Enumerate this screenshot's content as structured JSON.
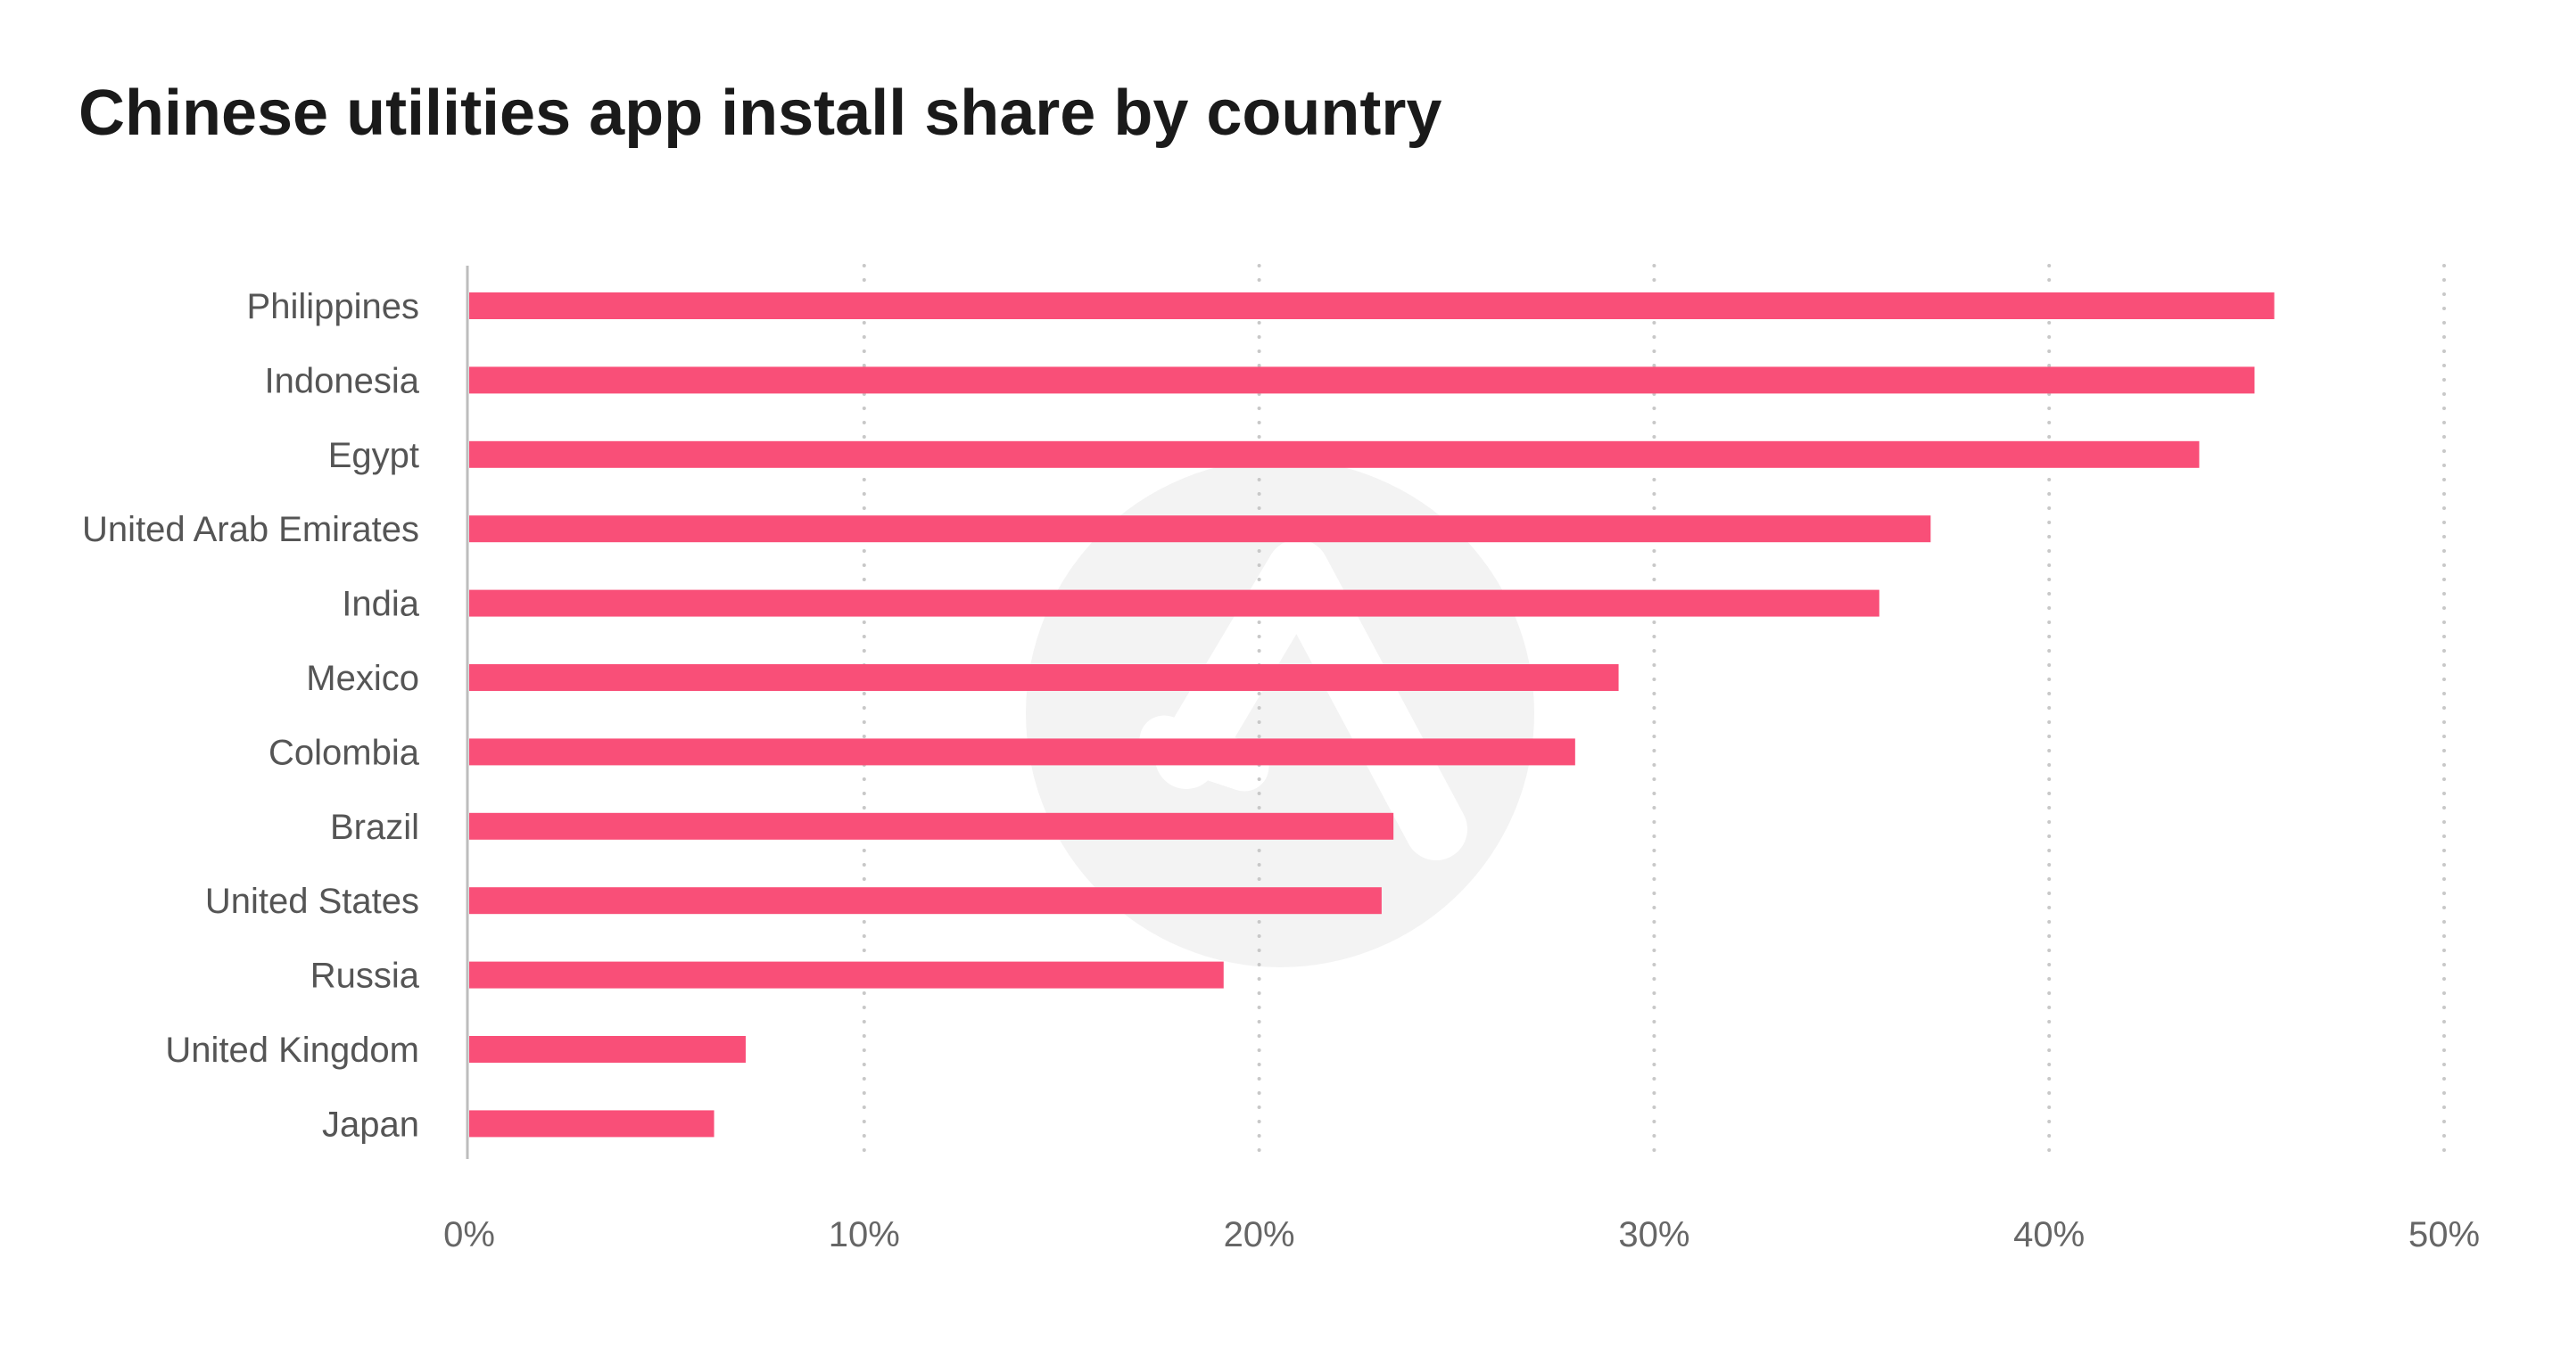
{
  "chart_data": {
    "type": "bar",
    "orientation": "horizontal",
    "title": "Chinese utilities app install share by country",
    "categories": [
      "Philippines",
      "Indonesia",
      "Egypt",
      "United Arab Emirates",
      "India",
      "Mexico",
      "Colombia",
      "Brazil",
      "United States",
      "Russia",
      "United Kingdom",
      "Japan"
    ],
    "values": [
      45.7,
      45.2,
      43.8,
      37.0,
      35.7,
      29.1,
      28.0,
      23.4,
      23.1,
      19.1,
      7.0,
      6.2
    ],
    "xlabel": "",
    "ylabel": "",
    "xlim": [
      0,
      50
    ],
    "xticks": [
      0,
      10,
      20,
      30,
      40,
      50
    ],
    "xtick_labels": [
      "0%",
      "10%",
      "20%",
      "30%",
      "40%",
      "50%"
    ],
    "grid": "vertical dotted",
    "bar_color": "#f94f78",
    "grid_color": "#c8c8c8",
    "axis_color": "#bdbdbd",
    "watermark_icon": "brand-logo-watermark"
  }
}
